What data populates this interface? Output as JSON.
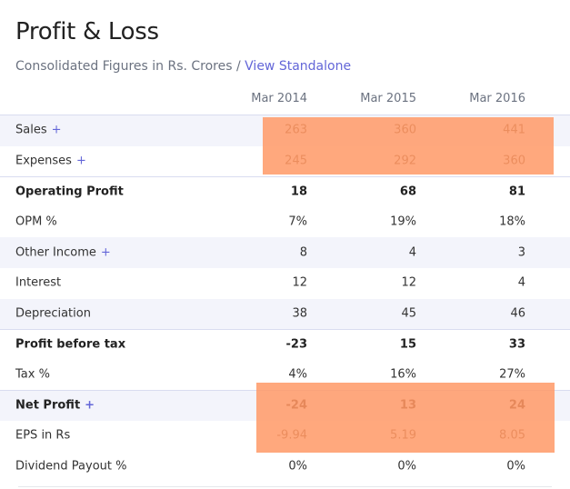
{
  "title": "Profit & Loss",
  "subtitle": {
    "text": "Consolidated Figures in Rs. Crores / ",
    "link": "View Standalone"
  },
  "columns": [
    "Mar 2014",
    "Mar 2015",
    "Mar 2016"
  ],
  "rows": [
    {
      "label": "Sales",
      "plus": "+",
      "values": [
        "263",
        "360",
        "441"
      ]
    },
    {
      "label": "Expenses",
      "plus": "+",
      "values": [
        "245",
        "292",
        "360"
      ]
    },
    {
      "label": "Operating Profit",
      "plus": "",
      "values": [
        "18",
        "68",
        "81"
      ]
    },
    {
      "label": "OPM %",
      "plus": "",
      "values": [
        "7%",
        "19%",
        "18%"
      ]
    },
    {
      "label": "Other Income",
      "plus": "+",
      "values": [
        "8",
        "4",
        "3"
      ]
    },
    {
      "label": "Interest",
      "plus": "",
      "values": [
        "12",
        "12",
        "4"
      ]
    },
    {
      "label": "Depreciation",
      "plus": "",
      "values": [
        "38",
        "45",
        "46"
      ]
    },
    {
      "label": "Profit before tax",
      "plus": "",
      "values": [
        "-23",
        "15",
        "33"
      ]
    },
    {
      "label": "Tax %",
      "plus": "",
      "values": [
        "4%",
        "16%",
        "27%"
      ]
    },
    {
      "label": "Net Profit",
      "plus": "+",
      "values": [
        "-24",
        "13",
        "24"
      ]
    },
    {
      "label": "EPS in Rs",
      "plus": "",
      "values": [
        "-9.94",
        "5.19",
        "8.05"
      ]
    },
    {
      "label": "Dividend Payout %",
      "plus": "",
      "values": [
        "0%",
        "0%",
        "0%"
      ]
    }
  ],
  "colors": {
    "highlight": "#ff9966",
    "accent": "#6366d8"
  }
}
